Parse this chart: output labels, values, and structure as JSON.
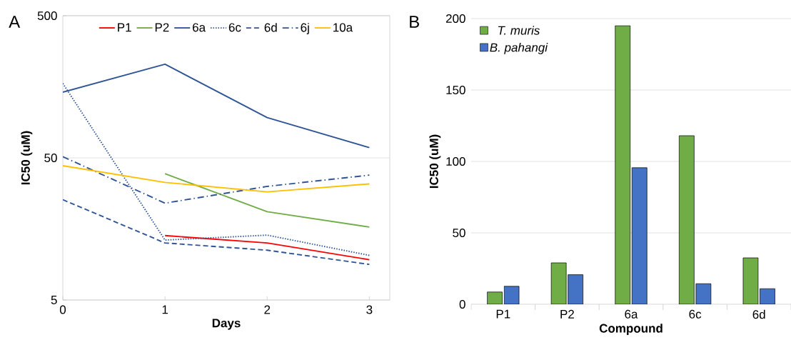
{
  "chart_data": [
    {
      "type": "line",
      "annotations": [
        "A"
      ],
      "xlabel": "Days",
      "ylabel": "IC50 (uM)",
      "x": [
        0,
        1,
        2,
        3
      ],
      "xlim": [
        0,
        3.2
      ],
      "xticks": [
        0,
        1,
        2,
        3
      ],
      "ylim": [
        5,
        500
      ],
      "yticks": [
        5,
        50,
        500
      ],
      "log": true,
      "grid": "y",
      "legend": "top",
      "series": [
        {
          "name": "P1",
          "color": "#ff0000",
          "line_style": "solid",
          "values": [
            null,
            14.2,
            12.6,
            9.6
          ]
        },
        {
          "name": "P2",
          "color": "#70ad47",
          "line_style": "solid",
          "values": [
            null,
            38.7,
            20.9,
            16.3
          ]
        },
        {
          "name": "6a",
          "color": "#2f5597",
          "line_style": "solid",
          "values": [
            145,
            228,
            96,
            59
          ]
        },
        {
          "name": "6c",
          "color": "#2f5597",
          "line_style": "dotted",
          "values": [
            167,
            13.2,
            14.3,
            10.3
          ]
        },
        {
          "name": "6d",
          "color": "#2f5597",
          "line_style": "dashed",
          "values": [
            25.4,
            12.6,
            11.2,
            8.9
          ]
        },
        {
          "name": "6j",
          "color": "#2f5597",
          "line_style": "dashdot",
          "values": [
            51,
            24,
            31.5,
            37.8
          ]
        },
        {
          "name": "10a",
          "color": "#ffc000",
          "line_style": "solid",
          "values": [
            44,
            33.6,
            28.8,
            32.8
          ]
        }
      ]
    },
    {
      "type": "bar",
      "annotations": [
        "B"
      ],
      "xlabel": "Compound",
      "ylabel": "IC50 (uM)",
      "categories": [
        "P1",
        "P2",
        "6a",
        "6c",
        "6d"
      ],
      "ylim": [
        0,
        200
      ],
      "yticks": [
        0,
        50,
        100,
        150,
        200
      ],
      "grid": "y",
      "legend": "top left",
      "series": [
        {
          "name": "T. muris",
          "color": "#70ad47",
          "values": [
            8.6,
            29,
            195,
            118,
            32.5
          ]
        },
        {
          "name": "B. pahangi",
          "color": "#4472c4",
          "values": [
            12.6,
            20.7,
            95.6,
            14.4,
            10.9
          ]
        }
      ]
    }
  ]
}
